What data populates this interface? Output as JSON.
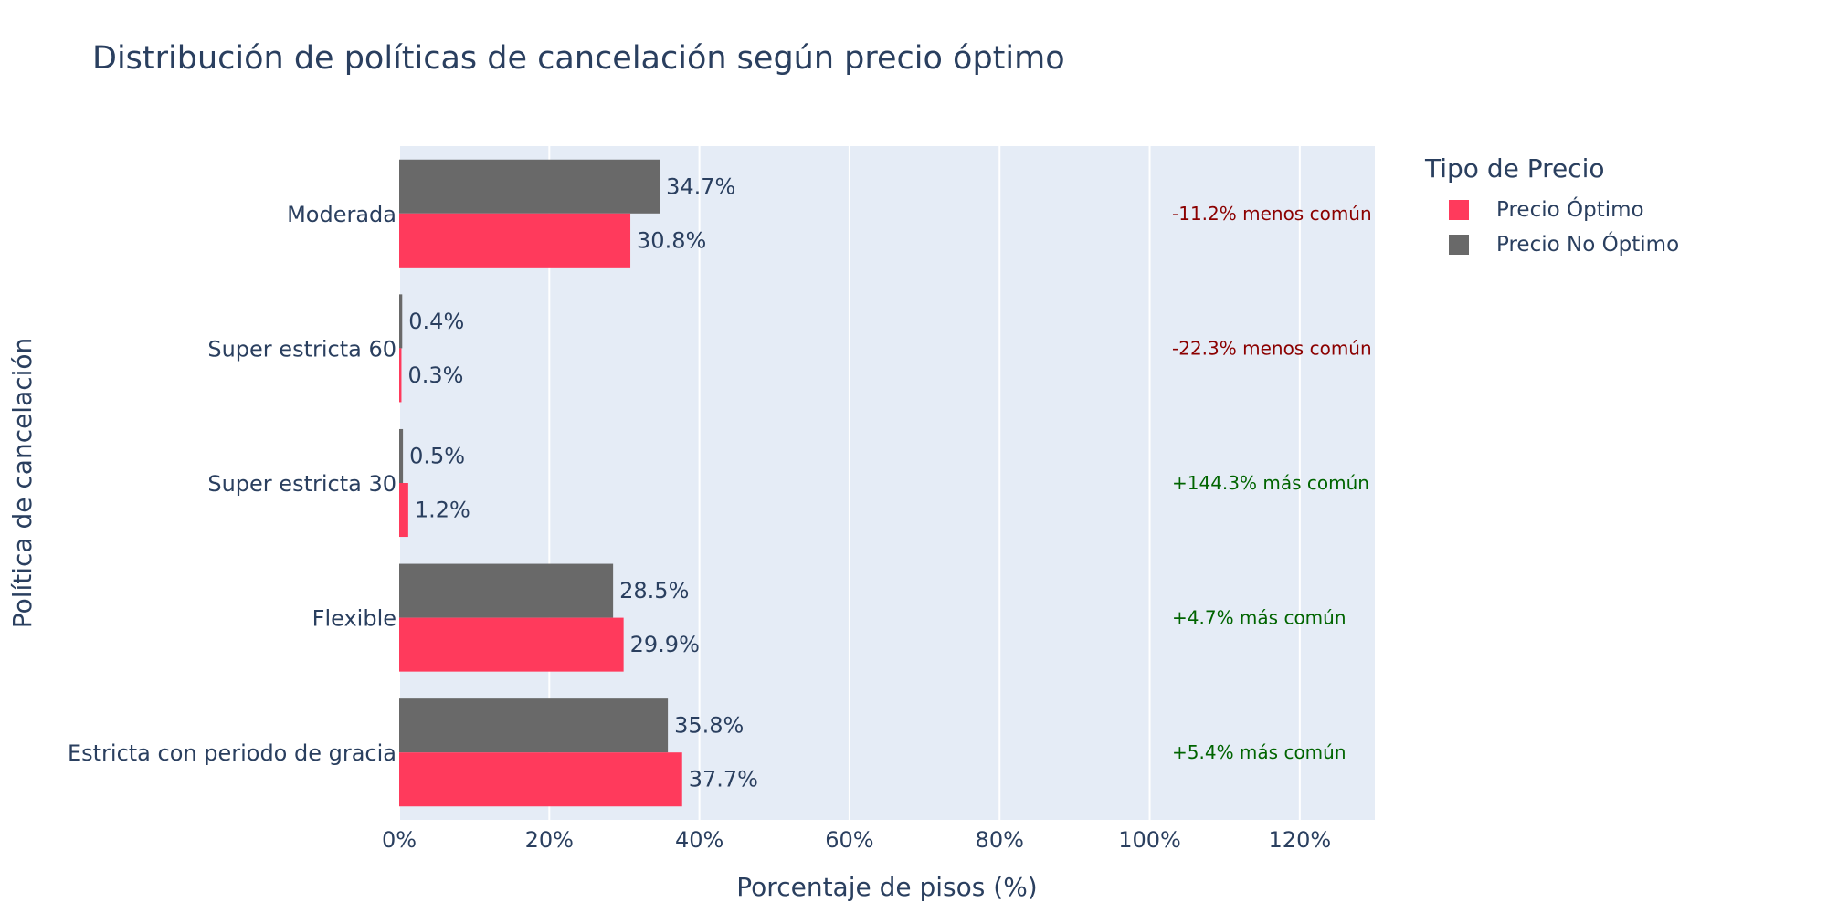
{
  "chart_data": {
    "type": "bar",
    "orientation": "horizontal",
    "title": "Distribución de políticas de cancelación según precio óptimo",
    "xlabel": "Porcentaje de pisos (%)",
    "ylabel": "Política de cancelación",
    "xlim": [
      0,
      130
    ],
    "x_ticks": [
      0,
      20,
      40,
      60,
      80,
      100,
      120
    ],
    "x_tick_labels": [
      "0%",
      "20%",
      "40%",
      "60%",
      "80%",
      "100%",
      "120%"
    ],
    "grid": true,
    "legend_title": "Tipo de Precio",
    "legend_position": "top-right outside",
    "categories": [
      "Moderada",
      "Super estricta 60",
      "Super estricta 30",
      "Flexible",
      "Estricta con periodo de gracia"
    ],
    "series": [
      {
        "name": "Precio Óptimo",
        "color": "#ff3a5c",
        "values": [
          30.8,
          0.3,
          1.2,
          29.9,
          37.7
        ],
        "labels": [
          "30.8%",
          "0.3%",
          "1.2%",
          "29.9%",
          "37.7%"
        ]
      },
      {
        "name": "Precio No Óptimo",
        "color": "#696969",
        "values": [
          34.7,
          0.4,
          0.5,
          28.5,
          35.8
        ],
        "labels": [
          "34.7%",
          "0.4%",
          "0.5%",
          "28.5%",
          "35.8%"
        ]
      }
    ],
    "annotations": [
      {
        "text": "-11.2% menos común",
        "color": "#8b0000"
      },
      {
        "text": "-22.3% menos común",
        "color": "#8b0000"
      },
      {
        "text": "+144.3% más común",
        "color": "#006400"
      },
      {
        "text": "+4.7% más común",
        "color": "#006400"
      },
      {
        "text": "+5.4% más común",
        "color": "#006400"
      }
    ],
    "colors": {
      "plot_background": "#e5ecf6",
      "text": "#2a3f5f",
      "grid": "#ffffff"
    }
  }
}
